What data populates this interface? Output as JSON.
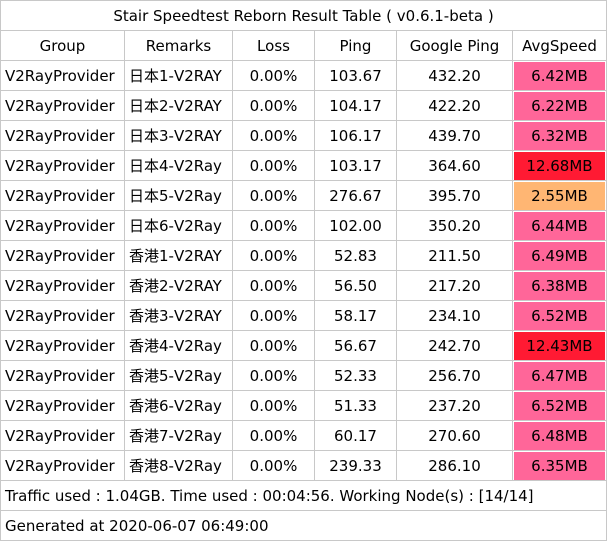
{
  "title": "Stair Speedtest Reborn Result Table ( v0.6.1-beta )",
  "headers": [
    "Group",
    "Remarks",
    "Loss",
    "Ping",
    "Google Ping",
    "AvgSpeed"
  ],
  "rows": [
    {
      "group": "V2RayProvider",
      "remarks": "日本1-V2RAY",
      "loss": "0.00%",
      "ping": "103.67",
      "google_ping": "432.20",
      "avg_speed": "6.42MB",
      "speed_color": "#ff6699"
    },
    {
      "group": "V2RayProvider",
      "remarks": "日本2-V2RAY",
      "loss": "0.00%",
      "ping": "104.17",
      "google_ping": "422.20",
      "avg_speed": "6.22MB",
      "speed_color": "#ff6699"
    },
    {
      "group": "V2RayProvider",
      "remarks": "日本3-V2RAY",
      "loss": "0.00%",
      "ping": "106.17",
      "google_ping": "439.70",
      "avg_speed": "6.32MB",
      "speed_color": "#ff6699"
    },
    {
      "group": "V2RayProvider",
      "remarks": "日本4-V2Ray",
      "loss": "0.00%",
      "ping": "103.17",
      "google_ping": "364.60",
      "avg_speed": "12.68MB",
      "speed_color": "#ff1a33"
    },
    {
      "group": "V2RayProvider",
      "remarks": "日本5-V2Ray",
      "loss": "0.00%",
      "ping": "276.67",
      "google_ping": "395.70",
      "avg_speed": "2.55MB",
      "speed_color": "#ffb673"
    },
    {
      "group": "V2RayProvider",
      "remarks": "日本6-V2Ray",
      "loss": "0.00%",
      "ping": "102.00",
      "google_ping": "350.20",
      "avg_speed": "6.44MB",
      "speed_color": "#ff6699"
    },
    {
      "group": "V2RayProvider",
      "remarks": "香港1-V2RAY",
      "loss": "0.00%",
      "ping": "52.83",
      "google_ping": "211.50",
      "avg_speed": "6.49MB",
      "speed_color": "#ff6699"
    },
    {
      "group": "V2RayProvider",
      "remarks": "香港2-V2RAY",
      "loss": "0.00%",
      "ping": "56.50",
      "google_ping": "217.20",
      "avg_speed": "6.38MB",
      "speed_color": "#ff6699"
    },
    {
      "group": "V2RayProvider",
      "remarks": "香港3-V2RAY",
      "loss": "0.00%",
      "ping": "58.17",
      "google_ping": "234.10",
      "avg_speed": "6.52MB",
      "speed_color": "#ff6699"
    },
    {
      "group": "V2RayProvider",
      "remarks": "香港4-V2Ray",
      "loss": "0.00%",
      "ping": "56.67",
      "google_ping": "242.70",
      "avg_speed": "12.43MB",
      "speed_color": "#ff1a33"
    },
    {
      "group": "V2RayProvider",
      "remarks": "香港5-V2Ray",
      "loss": "0.00%",
      "ping": "52.33",
      "google_ping": "256.70",
      "avg_speed": "6.47MB",
      "speed_color": "#ff6699"
    },
    {
      "group": "V2RayProvider",
      "remarks": "香港6-V2Ray",
      "loss": "0.00%",
      "ping": "51.33",
      "google_ping": "237.20",
      "avg_speed": "6.52MB",
      "speed_color": "#ff6699"
    },
    {
      "group": "V2RayProvider",
      "remarks": "香港7-V2Ray",
      "loss": "0.00%",
      "ping": "60.17",
      "google_ping": "270.60",
      "avg_speed": "6.48MB",
      "speed_color": "#ff6699"
    },
    {
      "group": "V2RayProvider",
      "remarks": "香港8-V2Ray",
      "loss": "0.00%",
      "ping": "239.33",
      "google_ping": "286.10",
      "avg_speed": "6.35MB",
      "speed_color": "#ff6699"
    }
  ],
  "footer": {
    "traffic": "Traffic used : 1.04GB. Time used : 00:04:56. Working Node(s) : [14/14]",
    "generated": "Generated at 2020-06-07 06:49:00"
  }
}
